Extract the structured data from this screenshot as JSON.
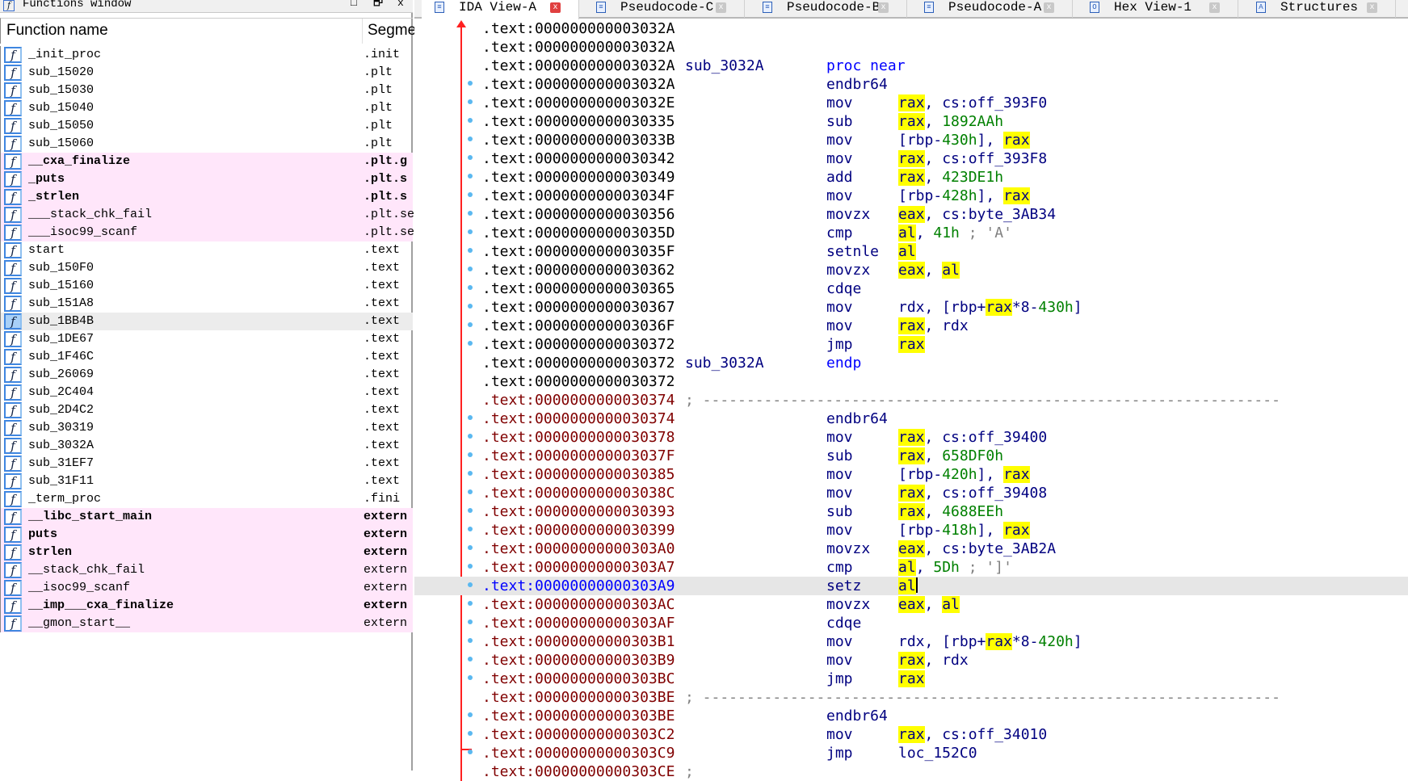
{
  "functions_window": {
    "title": "Functions window",
    "buttons": [
      "□",
      "🗗",
      "x"
    ],
    "columns": {
      "name": "Function name",
      "segment": "Segme"
    },
    "rows": [
      {
        "name": "_init_proc",
        "segment": ".init"
      },
      {
        "name": "sub_15020",
        "segment": ".plt"
      },
      {
        "name": "sub_15030",
        "segment": ".plt"
      },
      {
        "name": "sub_15040",
        "segment": ".plt"
      },
      {
        "name": "sub_15050",
        "segment": ".plt"
      },
      {
        "name": "sub_15060",
        "segment": ".plt"
      },
      {
        "name": "__cxa_finalize",
        "segment": ".plt.g",
        "style": "pink",
        "bold": true
      },
      {
        "name": "_puts",
        "segment": ".plt.s",
        "style": "pink",
        "bold": true
      },
      {
        "name": "_strlen",
        "segment": ".plt.s",
        "style": "pink",
        "bold": true
      },
      {
        "name": "___stack_chk_fail",
        "segment": ".plt.se",
        "style": "pink"
      },
      {
        "name": "___isoc99_scanf",
        "segment": ".plt.se",
        "style": "pink"
      },
      {
        "name": "start",
        "segment": ".text"
      },
      {
        "name": "sub_150F0",
        "segment": ".text"
      },
      {
        "name": "sub_15160",
        "segment": ".text"
      },
      {
        "name": "sub_151A8",
        "segment": ".text"
      },
      {
        "name": "sub_1BB4B",
        "segment": ".text",
        "selected": true
      },
      {
        "name": "sub_1DE67",
        "segment": ".text"
      },
      {
        "name": "sub_1F46C",
        "segment": ".text"
      },
      {
        "name": "sub_26069",
        "segment": ".text"
      },
      {
        "name": "sub_2C404",
        "segment": ".text"
      },
      {
        "name": "sub_2D4C2",
        "segment": ".text"
      },
      {
        "name": "sub_30319",
        "segment": ".text"
      },
      {
        "name": "sub_3032A",
        "segment": ".text"
      },
      {
        "name": "sub_31EF7",
        "segment": ".text"
      },
      {
        "name": "sub_31F11",
        "segment": ".text"
      },
      {
        "name": "_term_proc",
        "segment": ".fini"
      },
      {
        "name": "__libc_start_main",
        "segment": "extern",
        "style": "pink",
        "bold": true
      },
      {
        "name": "puts",
        "segment": "extern",
        "style": "pink",
        "bold": true
      },
      {
        "name": "strlen",
        "segment": "extern",
        "style": "pink",
        "bold": true
      },
      {
        "name": "__stack_chk_fail",
        "segment": "extern",
        "style": "pink"
      },
      {
        "name": "__isoc99_scanf",
        "segment": "extern",
        "style": "pink"
      },
      {
        "name": "__imp___cxa_finalize",
        "segment": "extern",
        "style": "pink",
        "bold": true
      },
      {
        "name": "__gmon_start__",
        "segment": "extern",
        "style": "pink"
      }
    ]
  },
  "tabs": [
    {
      "label": "IDA View-A",
      "icon": "disassembly-icon",
      "active": true
    },
    {
      "label": "Pseudocode-C",
      "icon": "pseudocode-icon"
    },
    {
      "label": "Pseudocode-B",
      "icon": "pseudocode-icon"
    },
    {
      "label": "Pseudocode-A",
      "icon": "pseudocode-icon"
    },
    {
      "label": "Hex View-1",
      "icon": "hex-icon"
    },
    {
      "label": "Structures",
      "icon": "structures-icon"
    }
  ],
  "tab_close_glyph": "x",
  "colors": {
    "highlight": "#ffff00",
    "address_red": "#800000",
    "address_black": "#000000",
    "number_green": "#008000",
    "selected_row": "#e6e6e6",
    "pink_row": "#ffe6fa"
  },
  "disassembly": [
    {
      "addr": ".text:000000000003032A",
      "color": "black"
    },
    {
      "addr": ".text:000000000003032A",
      "color": "black"
    },
    {
      "addr": ".text:000000000003032A",
      "color": "black",
      "label": "sub_3032A",
      "mn": "proc near",
      "kw": true
    },
    {
      "addr": ".text:000000000003032A",
      "color": "black",
      "dot": true,
      "mn": "endbr64"
    },
    {
      "addr": ".text:000000000003032E",
      "color": "black",
      "dot": true,
      "mn": "mov",
      "op": [
        [
          "h",
          "rax"
        ],
        [
          "t",
          ", cs:off_393F0"
        ]
      ]
    },
    {
      "addr": ".text:0000000000030335",
      "color": "black",
      "dot": true,
      "mn": "sub",
      "op": [
        [
          "h",
          "rax"
        ],
        [
          "t",
          ", "
        ],
        [
          "g",
          "1892AAh"
        ]
      ]
    },
    {
      "addr": ".text:000000000003033B",
      "color": "black",
      "dot": true,
      "mn": "mov",
      "op": [
        [
          "t",
          "[rbp-"
        ],
        [
          "g",
          "430h"
        ],
        [
          "t",
          "], "
        ],
        [
          "h",
          "rax"
        ]
      ]
    },
    {
      "addr": ".text:0000000000030342",
      "color": "black",
      "dot": true,
      "mn": "mov",
      "op": [
        [
          "h",
          "rax"
        ],
        [
          "t",
          ", cs:off_393F8"
        ]
      ]
    },
    {
      "addr": ".text:0000000000030349",
      "color": "black",
      "dot": true,
      "mn": "add",
      "op": [
        [
          "h",
          "rax"
        ],
        [
          "t",
          ", "
        ],
        [
          "g",
          "423DE1h"
        ]
      ]
    },
    {
      "addr": ".text:000000000003034F",
      "color": "black",
      "dot": true,
      "mn": "mov",
      "op": [
        [
          "t",
          "[rbp-"
        ],
        [
          "g",
          "428h"
        ],
        [
          "t",
          "], "
        ],
        [
          "h",
          "rax"
        ]
      ]
    },
    {
      "addr": ".text:0000000000030356",
      "color": "black",
      "dot": true,
      "mn": "movzx",
      "op": [
        [
          "h",
          "eax"
        ],
        [
          "t",
          ", cs:byte_3AB34"
        ]
      ]
    },
    {
      "addr": ".text:000000000003035D",
      "color": "black",
      "dot": true,
      "mn": "cmp",
      "op": [
        [
          "h",
          "al"
        ],
        [
          "t",
          ", "
        ],
        [
          "g",
          "41h"
        ],
        [
          "c",
          " ; 'A'"
        ]
      ]
    },
    {
      "addr": ".text:000000000003035F",
      "color": "black",
      "dot": true,
      "mn": "setnle",
      "op": [
        [
          "h",
          "al"
        ]
      ]
    },
    {
      "addr": ".text:0000000000030362",
      "color": "black",
      "dot": true,
      "mn": "movzx",
      "op": [
        [
          "h",
          "eax"
        ],
        [
          "t",
          ", "
        ],
        [
          "h",
          "al"
        ]
      ]
    },
    {
      "addr": ".text:0000000000030365",
      "color": "black",
      "dot": true,
      "mn": "cdqe"
    },
    {
      "addr": ".text:0000000000030367",
      "color": "black",
      "dot": true,
      "mn": "mov",
      "op": [
        [
          "t",
          "rdx, [rbp+"
        ],
        [
          "h",
          "rax"
        ],
        [
          "t",
          "*8-"
        ],
        [
          "g",
          "430h"
        ],
        [
          "t",
          "]"
        ]
      ]
    },
    {
      "addr": ".text:000000000003036F",
      "color": "black",
      "dot": true,
      "mn": "mov",
      "op": [
        [
          "h",
          "rax"
        ],
        [
          "t",
          ", rdx"
        ]
      ]
    },
    {
      "addr": ".text:0000000000030372",
      "color": "black",
      "dot": true,
      "mn": "jmp",
      "op": [
        [
          "h",
          "rax"
        ]
      ]
    },
    {
      "addr": ".text:0000000000030372",
      "color": "black",
      "label": "sub_3032A",
      "mn": "endp",
      "kw": true
    },
    {
      "addr": ".text:0000000000030372",
      "color": "black"
    },
    {
      "addr": ".text:0000000000030374",
      "color": "red",
      "sep": "; ------------------------------------------------------------------"
    },
    {
      "addr": ".text:0000000000030374",
      "color": "red",
      "dot": true,
      "mn": "endbr64"
    },
    {
      "addr": ".text:0000000000030378",
      "color": "red",
      "dot": true,
      "mn": "mov",
      "op": [
        [
          "h",
          "rax"
        ],
        [
          "t",
          ", cs:off_39400"
        ]
      ]
    },
    {
      "addr": ".text:000000000003037F",
      "color": "red",
      "dot": true,
      "mn": "sub",
      "op": [
        [
          "h",
          "rax"
        ],
        [
          "t",
          ", "
        ],
        [
          "g",
          "658DF0h"
        ]
      ]
    },
    {
      "addr": ".text:0000000000030385",
      "color": "red",
      "dot": true,
      "mn": "mov",
      "op": [
        [
          "t",
          "[rbp-"
        ],
        [
          "g",
          "420h"
        ],
        [
          "t",
          "], "
        ],
        [
          "h",
          "rax"
        ]
      ]
    },
    {
      "addr": ".text:000000000003038C",
      "color": "red",
      "dot": true,
      "mn": "mov",
      "op": [
        [
          "h",
          "rax"
        ],
        [
          "t",
          ", cs:off_39408"
        ]
      ]
    },
    {
      "addr": ".text:0000000000030393",
      "color": "red",
      "dot": true,
      "mn": "sub",
      "op": [
        [
          "h",
          "rax"
        ],
        [
          "t",
          ", "
        ],
        [
          "g",
          "4688EEh"
        ]
      ]
    },
    {
      "addr": ".text:0000000000030399",
      "color": "red",
      "dot": true,
      "mn": "mov",
      "op": [
        [
          "t",
          "[rbp-"
        ],
        [
          "g",
          "418h"
        ],
        [
          "t",
          "], "
        ],
        [
          "h",
          "rax"
        ]
      ]
    },
    {
      "addr": ".text:00000000000303A0",
      "color": "red",
      "dot": true,
      "mn": "movzx",
      "op": [
        [
          "h",
          "eax"
        ],
        [
          "t",
          ", cs:byte_3AB2A"
        ]
      ]
    },
    {
      "addr": ".text:00000000000303A7",
      "color": "red",
      "dot": true,
      "mn": "cmp",
      "op": [
        [
          "h",
          "al"
        ],
        [
          "t",
          ", "
        ],
        [
          "g",
          "5Dh"
        ],
        [
          "c",
          " ; ']'"
        ]
      ]
    },
    {
      "addr": ".text:00000000000303A9",
      "color": "cur",
      "dot": true,
      "selected": true,
      "mn": "setz",
      "op": [
        [
          "h",
          "al"
        ]
      ]
    },
    {
      "addr": ".text:00000000000303AC",
      "color": "red",
      "dot": true,
      "mn": "movzx",
      "op": [
        [
          "h",
          "eax"
        ],
        [
          "t",
          ", "
        ],
        [
          "h",
          "al"
        ]
      ]
    },
    {
      "addr": ".text:00000000000303AF",
      "color": "red",
      "dot": true,
      "mn": "cdqe"
    },
    {
      "addr": ".text:00000000000303B1",
      "color": "red",
      "dot": true,
      "mn": "mov",
      "op": [
        [
          "t",
          "rdx, [rbp+"
        ],
        [
          "h",
          "rax"
        ],
        [
          "t",
          "*8-"
        ],
        [
          "g",
          "420h"
        ],
        [
          "t",
          "]"
        ]
      ]
    },
    {
      "addr": ".text:00000000000303B9",
      "color": "red",
      "dot": true,
      "mn": "mov",
      "op": [
        [
          "h",
          "rax"
        ],
        [
          "t",
          ", rdx"
        ]
      ]
    },
    {
      "addr": ".text:00000000000303BC",
      "color": "red",
      "dot": true,
      "mn": "jmp",
      "op": [
        [
          "h",
          "rax"
        ]
      ]
    },
    {
      "addr": ".text:00000000000303BE",
      "color": "red",
      "sep": "; ------------------------------------------------------------------"
    },
    {
      "addr": ".text:00000000000303BE",
      "color": "red",
      "dot": true,
      "mn": "endbr64"
    },
    {
      "addr": ".text:00000000000303C2",
      "color": "red",
      "dot": true,
      "mn": "mov",
      "op": [
        [
          "h",
          "rax"
        ],
        [
          "t",
          ", cs:off_34010"
        ]
      ]
    },
    {
      "addr": ".text:00000000000303C9",
      "color": "red",
      "dot": true,
      "mn": "jmp",
      "op": [
        [
          "t",
          "loc_152C0"
        ]
      ]
    },
    {
      "addr": ".text:00000000000303CE",
      "color": "red",
      "sep": ";"
    }
  ]
}
